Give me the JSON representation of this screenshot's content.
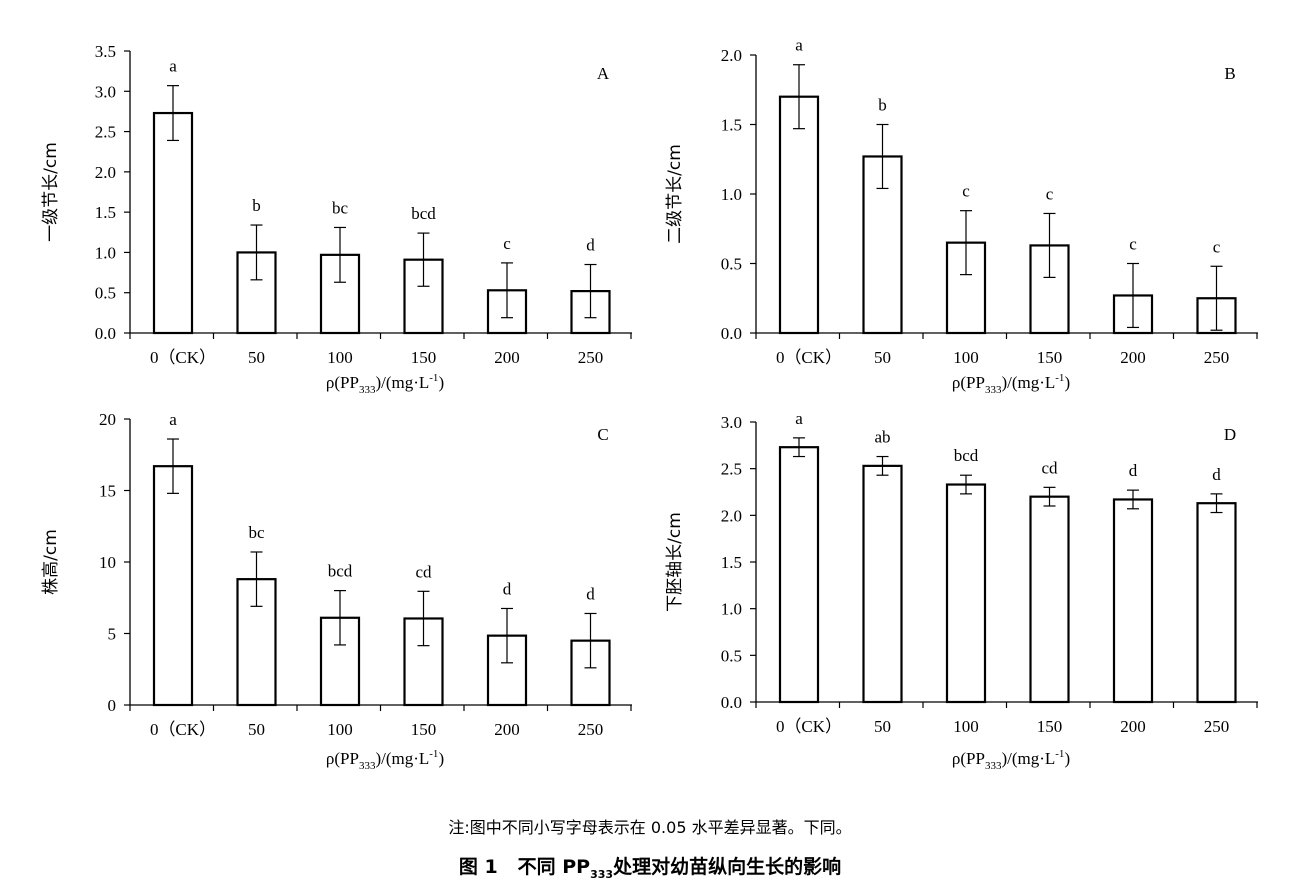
{
  "note": "注:图中不同小写字母表示在 0.05 水平差异显著。下同。",
  "caption": {
    "prefix": "图 1",
    "text_before": "不同 PP",
    "subscript": "333",
    "text_after": "处理对幼苗纵向生长的影响"
  },
  "chart_data": [
    {
      "type": "bar",
      "panel_label": "A",
      "categories": [
        "0（CK）",
        "50",
        "100",
        "150",
        "200",
        "250"
      ],
      "values": [
        2.73,
        1.0,
        0.97,
        0.91,
        0.53,
        0.52
      ],
      "errors": [
        0.34,
        0.34,
        0.34,
        0.33,
        0.34,
        0.33
      ],
      "letters": [
        "a",
        "b",
        "bc",
        "bcd",
        "c",
        "d"
      ],
      "ylabel": "一级节长/cm",
      "xlabel": "ρ(PP333)/(mg·L-1)",
      "ylim": [
        0,
        3.5
      ],
      "yticks": [
        "0.0",
        "0.5",
        "1.0",
        "1.5",
        "2.0",
        "2.5",
        "3.0",
        "3.5"
      ]
    },
    {
      "type": "bar",
      "panel_label": "B",
      "categories": [
        "0（CK）",
        "50",
        "100",
        "150",
        "200",
        "250"
      ],
      "values": [
        1.7,
        1.27,
        0.65,
        0.63,
        0.27,
        0.25
      ],
      "errors": [
        0.23,
        0.23,
        0.23,
        0.23,
        0.23,
        0.23
      ],
      "letters": [
        "a",
        "b",
        "c",
        "c",
        "c",
        "c"
      ],
      "ylabel": "二级节长/cm",
      "xlabel": "ρ(PP333)/(mg·L-1)",
      "ylim": [
        0,
        2.0
      ],
      "yticks": [
        "0.0",
        "0.5",
        "1.0",
        "1.5",
        "2.0"
      ]
    },
    {
      "type": "bar",
      "panel_label": "C",
      "categories": [
        "0（CK）",
        "50",
        "100",
        "150",
        "200",
        "250"
      ],
      "values": [
        16.7,
        8.8,
        6.1,
        6.05,
        4.85,
        4.5
      ],
      "errors": [
        1.9,
        1.9,
        1.9,
        1.9,
        1.9,
        1.9
      ],
      "letters": [
        "a",
        "bc",
        "bcd",
        "cd",
        "d",
        "d"
      ],
      "ylabel": "株高/cm",
      "xlabel": "ρ(PP333)/(mg·L-1)",
      "ylim": [
        0,
        20
      ],
      "yticks": [
        "0",
        "5",
        "10",
        "15",
        "20"
      ]
    },
    {
      "type": "bar",
      "panel_label": "D",
      "categories": [
        "0（CK）",
        "50",
        "100",
        "150",
        "200",
        "250"
      ],
      "values": [
        2.73,
        2.53,
        2.33,
        2.2,
        2.17,
        2.13
      ],
      "errors": [
        0.1,
        0.1,
        0.1,
        0.1,
        0.1,
        0.1
      ],
      "letters": [
        "a",
        "ab",
        "bcd",
        "cd",
        "d",
        "d"
      ],
      "ylabel": "下胚轴长/cm",
      "xlabel": "ρ(PP333)/(mg·L-1)",
      "ylim": [
        0,
        3.0
      ],
      "yticks": [
        "0.0",
        "0.5",
        "1.0",
        "1.5",
        "2.0",
        "2.5",
        "3.0"
      ]
    }
  ]
}
